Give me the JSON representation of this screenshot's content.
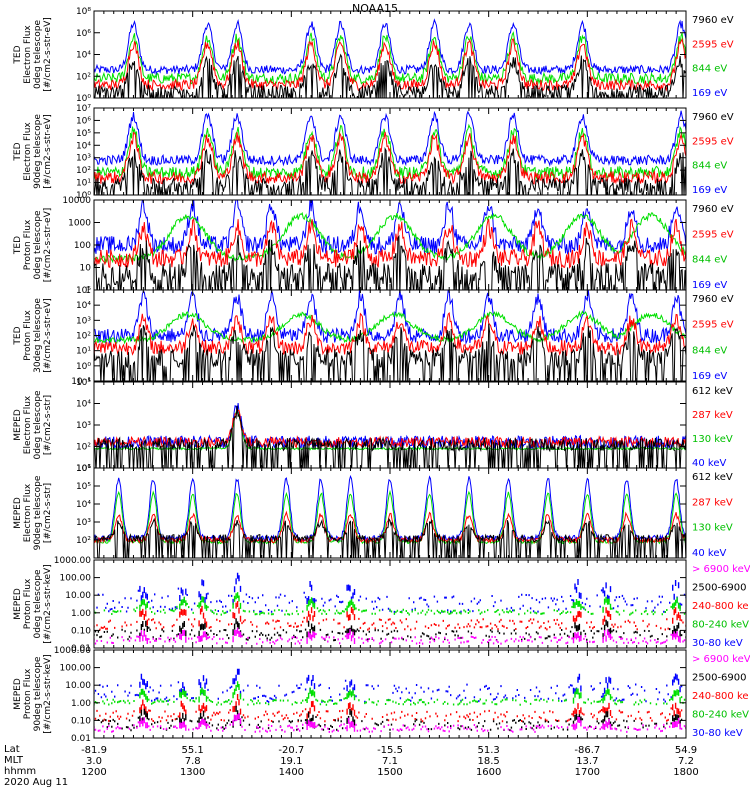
{
  "title": "NOAA15",
  "colors": {
    "blue": "#0000ff",
    "red": "#ff0000",
    "green": "#00e000",
    "black": "#000000",
    "magenta": "#ff00ff"
  },
  "footer": {
    "row_labels": [
      "Lat",
      "MLT",
      "hhmm"
    ],
    "date": "2020 Aug 11",
    "columns": [
      {
        "lat": "-81.9",
        "mlt": "3.0",
        "hhmm": "1200"
      },
      {
        "lat": "55.1",
        "mlt": "7.8",
        "hhmm": "1300"
      },
      {
        "lat": "-20.7",
        "mlt": "19.1",
        "hhmm": "1400"
      },
      {
        "lat": "-15.5",
        "mlt": "7.1",
        "hhmm": "1500"
      },
      {
        "lat": "51.3",
        "mlt": "18.5",
        "hhmm": "1600"
      },
      {
        "lat": "-86.7",
        "mlt": "13.7",
        "hhmm": "1700"
      },
      {
        "lat": "54.9",
        "mlt": "7.2",
        "hhmm": "1800"
      }
    ]
  },
  "chart_data": [
    {
      "type": "line",
      "title": "",
      "ylabel": [
        "TED",
        "Electron Flux",
        "0deg telescope",
        "[#/cm2-s-str-eV]"
      ],
      "log": true,
      "ylim_exp": [
        0,
        8
      ],
      "ticks": [
        {
          "v": 0,
          "label": "10⁰"
        },
        {
          "v": 2,
          "label": "10²"
        },
        {
          "v": 4,
          "label": "10⁴"
        },
        {
          "v": 6,
          "label": "10⁶"
        },
        {
          "v": 8,
          "label": "10⁸"
        }
      ],
      "xlim": [
        1200,
        1800
      ],
      "x": [
        "1200",
        "1300",
        "1400",
        "1500",
        "1600",
        "1700",
        "1800"
      ],
      "legend": [
        {
          "text": "7960 eV",
          "color": "#000000"
        },
        {
          "text": "2595 eV",
          "color": "#ff0000"
        },
        {
          "text": "844 eV",
          "color": "#00c000"
        },
        {
          "text": "169 eV",
          "color": "#0000ff"
        }
      ],
      "series": [
        {
          "color": "#0000ff",
          "base": 2.6,
          "peak": 6.8,
          "noise": 0.4
        },
        {
          "color": "#00e000",
          "base": 1.8,
          "peak": 5.6,
          "noise": 0.5
        },
        {
          "color": "#ff0000",
          "base": 1.2,
          "peak": 5.0,
          "noise": 0.5
        },
        {
          "color": "#000000",
          "base": 0.6,
          "peak": 3.4,
          "noise": 0.6
        }
      ]
    },
    {
      "type": "line",
      "title": "",
      "ylabel": [
        "TED",
        "Electron Flux",
        "90deg telescope",
        "[#/cm2-s-str-eV]"
      ],
      "log": true,
      "ylim_exp": [
        0,
        7
      ],
      "ticks": [
        {
          "v": 0,
          "label": "10⁰"
        },
        {
          "v": 1,
          "label": "10¹"
        },
        {
          "v": 2,
          "label": "10²"
        },
        {
          "v": 3,
          "label": "10³"
        },
        {
          "v": 4,
          "label": "10⁴"
        },
        {
          "v": 5,
          "label": "10⁵"
        },
        {
          "v": 6,
          "label": "10⁶"
        },
        {
          "v": 7,
          "label": "10⁷"
        }
      ],
      "xlim": [
        1200,
        1800
      ],
      "x": [
        "1200",
        "1300",
        "1400",
        "1500",
        "1600",
        "1700",
        "1800"
      ],
      "legend": [
        {
          "text": "7960 eV",
          "color": "#000000"
        },
        {
          "text": "2595 eV",
          "color": "#ff0000"
        },
        {
          "text": "844 eV",
          "color": "#00c000"
        },
        {
          "text": "169 eV",
          "color": "#0000ff"
        }
      ],
      "series": [
        {
          "color": "#0000ff",
          "base": 2.8,
          "peak": 6.4,
          "noise": 0.4
        },
        {
          "color": "#00e000",
          "base": 1.8,
          "peak": 5.2,
          "noise": 0.5
        },
        {
          "color": "#ff0000",
          "base": 1.4,
          "peak": 4.6,
          "noise": 0.5
        },
        {
          "color": "#000000",
          "base": 0.8,
          "peak": 3.2,
          "noise": 0.6
        }
      ]
    },
    {
      "type": "line",
      "title": "",
      "ylabel": [
        "TED",
        "Proton Flux",
        "0deg telescope",
        "[#/cm2-s-str-eV]"
      ],
      "log": true,
      "ylim_exp": [
        0,
        4
      ],
      "ticks": [
        {
          "v": 0,
          "label": "1"
        },
        {
          "v": 1,
          "label": "10"
        },
        {
          "v": 2,
          "label": "100"
        },
        {
          "v": 3,
          "label": "1000"
        },
        {
          "v": 4,
          "label": "10000"
        }
      ],
      "xlim": [
        1200,
        1800
      ],
      "x": [
        "1200",
        "1300",
        "1400",
        "1500",
        "1600",
        "1700",
        "1800"
      ],
      "legend": [
        {
          "text": "7960 eV",
          "color": "#000000"
        },
        {
          "text": "2595 eV",
          "color": "#ff0000"
        },
        {
          "text": "844 eV",
          "color": "#00c000"
        },
        {
          "text": "169 eV",
          "color": "#0000ff"
        }
      ],
      "series": [
        {
          "color": "#0000ff",
          "base": 2.0,
          "peak": 3.8,
          "noise": 0.4
        },
        {
          "color": "#00e000",
          "base": 2.0,
          "peak": 3.3,
          "noise": 0.15
        },
        {
          "color": "#ff0000",
          "base": 1.4,
          "peak": 2.8,
          "noise": 0.4
        },
        {
          "color": "#000000",
          "base": 0.7,
          "peak": 2.0,
          "noise": 0.5
        }
      ]
    },
    {
      "type": "line",
      "title": "",
      "ylabel": [
        "TED",
        "Proton Flux",
        "30deg telescope",
        "[#/cm2-s-str-eV]"
      ],
      "log": true,
      "ylim_exp": [
        -1,
        5
      ],
      "ticks": [
        {
          "v": -1,
          "label": "10⁻¹"
        },
        {
          "v": 0,
          "label": "10⁰"
        },
        {
          "v": 1,
          "label": "10¹"
        },
        {
          "v": 2,
          "label": "10²"
        },
        {
          "v": 3,
          "label": "10³"
        },
        {
          "v": 4,
          "label": "10⁴"
        },
        {
          "v": 5,
          "label": "10⁵"
        }
      ],
      "xlim": [
        1200,
        1800
      ],
      "x": [
        "1200",
        "1300",
        "1400",
        "1500",
        "1600",
        "1700",
        "1800"
      ],
      "legend": [
        {
          "text": "7960 eV",
          "color": "#000000"
        },
        {
          "text": "2595 eV",
          "color": "#ff0000"
        },
        {
          "text": "844 eV",
          "color": "#00c000"
        },
        {
          "text": "169 eV",
          "color": "#0000ff"
        }
      ],
      "series": [
        {
          "color": "#0000ff",
          "base": 2.0,
          "peak": 4.6,
          "noise": 0.5
        },
        {
          "color": "#00e000",
          "base": 2.3,
          "peak": 3.4,
          "noise": 0.2
        },
        {
          "color": "#ff0000",
          "base": 1.2,
          "peak": 3.0,
          "noise": 0.5
        },
        {
          "color": "#000000",
          "base": 0.5,
          "peak": 2.2,
          "noise": 0.6
        }
      ]
    },
    {
      "type": "line",
      "title": "",
      "ylabel": [
        "MEPED",
        "Electron Flux",
        "0deg telescope",
        "[#/cm2-s-str]"
      ],
      "log": true,
      "ylim_exp": [
        1,
        5
      ],
      "ticks": [
        {
          "v": 1,
          "label": "10¹"
        },
        {
          "v": 2,
          "label": "10²"
        },
        {
          "v": 3,
          "label": "10³"
        },
        {
          "v": 4,
          "label": "10⁴"
        },
        {
          "v": 5,
          "label": "10⁵"
        }
      ],
      "xlim": [
        1200,
        1800
      ],
      "x": [
        "1200",
        "1300",
        "1400",
        "1500",
        "1600",
        "1700",
        "1800"
      ],
      "legend": [
        {
          "text": "612 keV",
          "color": "#000000"
        },
        {
          "text": "287 keV",
          "color": "#ff0000"
        },
        {
          "text": "130 keV",
          "color": "#00c000"
        },
        {
          "text": "40 keV",
          "color": "#0000ff"
        }
      ],
      "series": [
        {
          "color": "#0000ff",
          "base": 2.2,
          "peak": 3.8,
          "noise": 0.3
        },
        {
          "color": "#00e000",
          "base": 1.9,
          "peak": 3.6,
          "noise": 0.05
        },
        {
          "color": "#ff0000",
          "base": 2.2,
          "peak": 3.7,
          "noise": 0.25
        },
        {
          "color": "#000000",
          "base": 2.1,
          "peak": 3.6,
          "noise": 0.3
        }
      ]
    },
    {
      "type": "line",
      "title": "",
      "ylabel": [
        "MEPED",
        "Electron Flux",
        "90deg telescope",
        "[#/cm2-s-str]"
      ],
      "log": true,
      "ylim_exp": [
        1,
        6
      ],
      "ticks": [
        {
          "v": 2,
          "label": "10²"
        },
        {
          "v": 3,
          "label": "10³"
        },
        {
          "v": 4,
          "label": "10⁴"
        },
        {
          "v": 5,
          "label": "10⁵"
        },
        {
          "v": 6,
          "label": "10⁶"
        }
      ],
      "xlim": [
        1200,
        1800
      ],
      "x": [
        "1200",
        "1300",
        "1400",
        "1500",
        "1600",
        "1700",
        "1800"
      ],
      "legend": [
        {
          "text": "612 keV",
          "color": "#000000"
        },
        {
          "text": "287 keV",
          "color": "#ff0000"
        },
        {
          "text": "130 keV",
          "color": "#00c000"
        },
        {
          "text": "40 keV",
          "color": "#0000ff"
        }
      ],
      "series": [
        {
          "color": "#0000ff",
          "base": 2.1,
          "peak": 5.4,
          "noise": 0.15
        },
        {
          "color": "#00e000",
          "base": 1.9,
          "peak": 4.6,
          "noise": 0.1
        },
        {
          "color": "#ff0000",
          "base": 2.0,
          "peak": 3.4,
          "noise": 0.15
        },
        {
          "color": "#000000",
          "base": 2.1,
          "peak": 3.0,
          "noise": 0.2
        }
      ]
    },
    {
      "type": "scatter",
      "title": "",
      "ylabel": [
        "MEPED",
        "Proton Flux",
        "0deg telescope",
        "[#/cm2-s-str-keV]"
      ],
      "log": true,
      "ylim_exp": [
        -2,
        3
      ],
      "ticks": [
        {
          "v": -2,
          "label": "0.01"
        },
        {
          "v": -1,
          "label": "0.10"
        },
        {
          "v": 0,
          "label": "1.00"
        },
        {
          "v": 1,
          "label": "10.00"
        },
        {
          "v": 2,
          "label": "100.00"
        },
        {
          "v": 3,
          "label": "1000.00"
        }
      ],
      "xlim": [
        1200,
        1800
      ],
      "x": [
        "1200",
        "1300",
        "1400",
        "1500",
        "1600",
        "1700",
        "1800"
      ],
      "legend": [
        {
          "text": "> 6900 keV",
          "color": "#ff00ff"
        },
        {
          "text": "2500-6900",
          "color": "#000000"
        },
        {
          "text": "240-800 ke",
          "color": "#ff0000"
        },
        {
          "text": "80-240 keV",
          "color": "#00c000"
        },
        {
          "text": "30-80 keV",
          "color": "#0000ff"
        }
      ],
      "series": [
        {
          "color": "#0000ff",
          "base": 0.6,
          "peak": 2.0,
          "noise": 0.5
        },
        {
          "color": "#00e000",
          "base": 0.1,
          "peak": 1.3,
          "noise": 0.15
        },
        {
          "color": "#ff0000",
          "base": -0.6,
          "peak": 0.6,
          "noise": 0.3
        },
        {
          "color": "#000000",
          "base": -1.2,
          "peak": -0.2,
          "noise": 0.3
        },
        {
          "color": "#ff00ff",
          "base": -1.5,
          "peak": -0.8,
          "noise": 0.2
        }
      ]
    },
    {
      "type": "scatter",
      "title": "",
      "ylabel": [
        "MEPED",
        "Proton Flux",
        "90deg telescope",
        "[#/cm2-s-str-keV]"
      ],
      "log": true,
      "ylim_exp": [
        -2,
        3
      ],
      "ticks": [
        {
          "v": -2,
          "label": "0.01"
        },
        {
          "v": -1,
          "label": "0.10"
        },
        {
          "v": 0,
          "label": "1.00"
        },
        {
          "v": 1,
          "label": "10.00"
        },
        {
          "v": 2,
          "label": "100.00"
        },
        {
          "v": 3,
          "label": "1000.00"
        }
      ],
      "xlim": [
        1200,
        1800
      ],
      "x": [
        "1200",
        "1300",
        "1400",
        "1500",
        "1600",
        "1700",
        "1800"
      ],
      "legend": [
        {
          "text": "> 6900 keV",
          "color": "#ff00ff"
        },
        {
          "text": "2500-6900",
          "color": "#000000"
        },
        {
          "text": "240-800 ke",
          "color": "#ff0000"
        },
        {
          "text": "80-240 keV",
          "color": "#00c000"
        },
        {
          "text": "30-80 keV",
          "color": "#0000ff"
        }
      ],
      "series": [
        {
          "color": "#0000ff",
          "base": 0.6,
          "peak": 1.7,
          "noise": 0.5
        },
        {
          "color": "#00e000",
          "base": 0.1,
          "peak": 1.2,
          "noise": 0.15
        },
        {
          "color": "#ff0000",
          "base": -0.7,
          "peak": 0.3,
          "noise": 0.3
        },
        {
          "color": "#000000",
          "base": -1.2,
          "peak": -0.2,
          "noise": 0.3
        },
        {
          "color": "#ff00ff",
          "base": -1.4,
          "peak": -0.6,
          "noise": 0.2
        }
      ]
    }
  ],
  "events": {
    "ted_electron": [
      1240,
      1315,
      1345,
      1420,
      1450,
      1495,
      1545,
      1580,
      1625,
      1695,
      1795
    ],
    "ted_proton": [
      1250,
      1300,
      1345,
      1380,
      1420,
      1470,
      1510,
      1560,
      1600,
      1650,
      1700,
      1745,
      1790
    ],
    "proton_green_arcs": [
      1295,
      1410,
      1505,
      1605,
      1695,
      1765
    ],
    "meped_e0_peak": [
      1345
    ],
    "meped_e90": [
      1225,
      1260,
      1300,
      1345,
      1395,
      1430,
      1460,
      1500,
      1540,
      1580,
      1620,
      1660,
      1700,
      1740,
      1790
    ]
  }
}
